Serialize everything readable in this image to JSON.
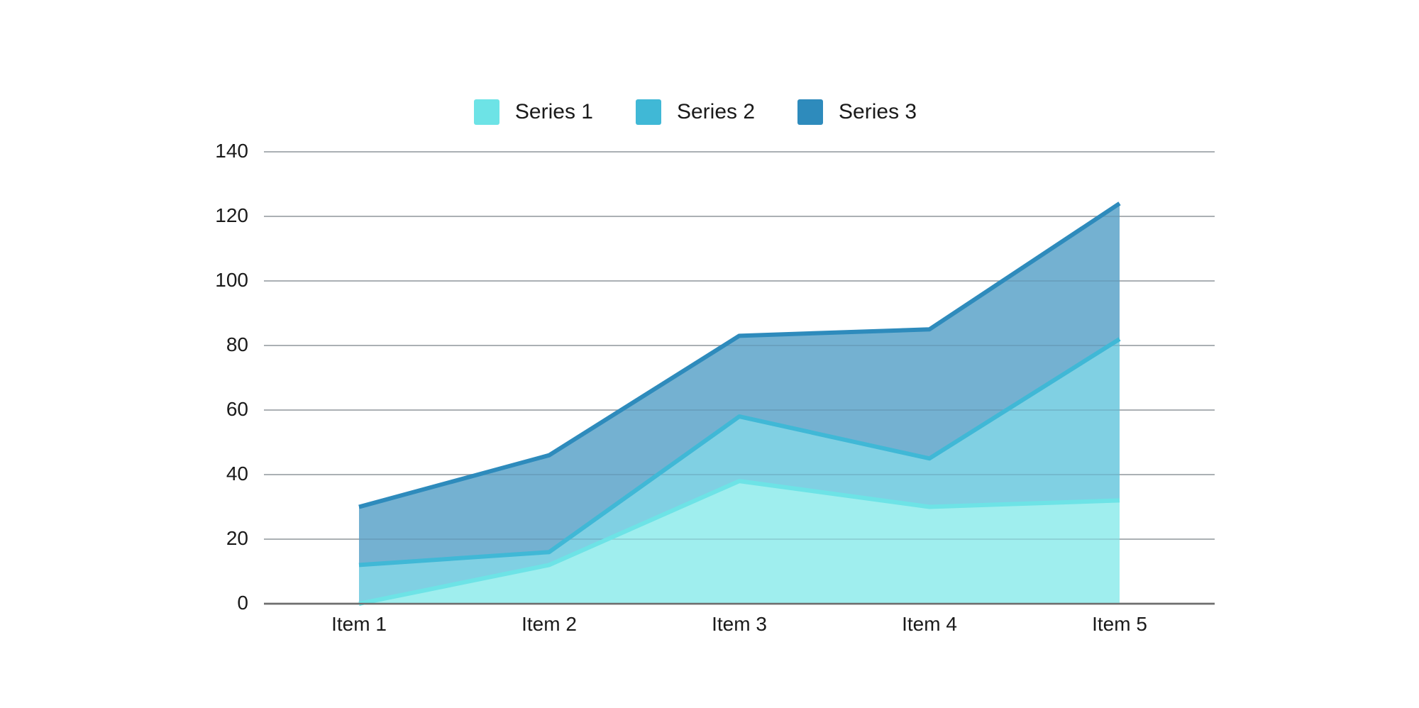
{
  "chart_data": {
    "type": "area",
    "stacked": true,
    "title": "",
    "xlabel": "",
    "ylabel": "",
    "categories": [
      "Item 1",
      "Item 2",
      "Item 3",
      "Item 4",
      "Item 5"
    ],
    "series": [
      {
        "name": "Series 1",
        "values": [
          0,
          12,
          38,
          30,
          32
        ],
        "color": "#6de3e6",
        "fill": "#9feeee"
      },
      {
        "name": "Series 2",
        "values": [
          12,
          4,
          20,
          15,
          50
        ],
        "color": "#40b8d6",
        "fill": "#80d0e3"
      },
      {
        "name": "Series 3",
        "values": [
          18,
          30,
          25,
          40,
          42
        ],
        "color": "#2e8bbc",
        "fill": "#74b1d1"
      }
    ],
    "stacked_totals": {
      "Series 1": [
        0,
        12,
        38,
        30,
        32
      ],
      "Series 2": [
        12,
        16,
        58,
        45,
        82
      ],
      "Series 3": [
        30,
        46,
        83,
        85,
        124
      ]
    },
    "ylim": [
      0,
      140
    ],
    "yticks": [
      0,
      20,
      40,
      60,
      80,
      100,
      120,
      140
    ],
    "grid": true,
    "legend_position": "top"
  },
  "legend": {
    "items": [
      {
        "label": "Series 1",
        "color": "#6de3e6"
      },
      {
        "label": "Series 2",
        "color": "#40b8d6"
      },
      {
        "label": "Series 3",
        "color": "#2e8bbc"
      }
    ]
  },
  "axes": {
    "y_labels": [
      "0",
      "20",
      "40",
      "60",
      "80",
      "100",
      "120",
      "140"
    ],
    "x_labels": [
      "Item 1",
      "Item 2",
      "Item 3",
      "Item 4",
      "Item 5"
    ]
  }
}
